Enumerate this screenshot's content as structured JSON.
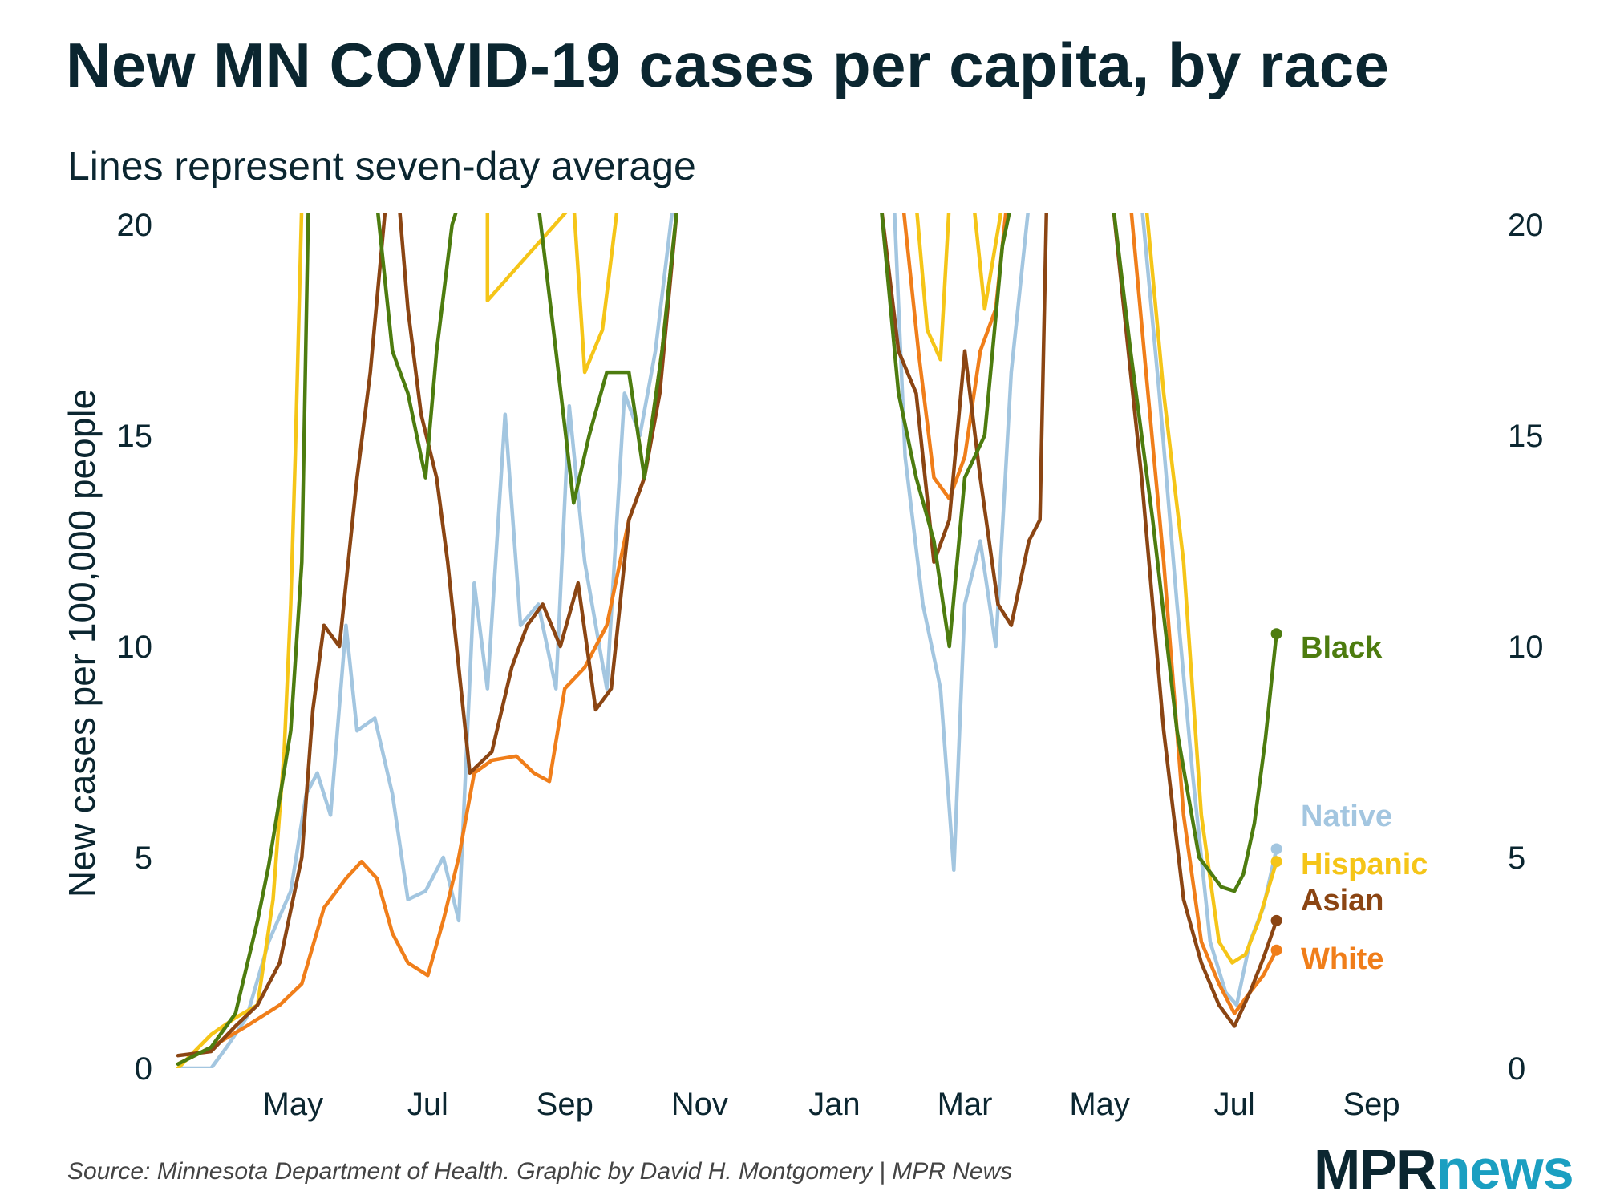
{
  "title": "New MN COVID-19 cases per capita, by race",
  "subtitle": "Lines represent seven-day average",
  "source": "Source: Minnesota Department of Health. Graphic by David H. Montgomery | MPR News",
  "logo": {
    "mpr": "MPR",
    "news": "news"
  },
  "colors": {
    "Black": "#4d7c0f",
    "Native": "#a3c6e0",
    "Hispanic": "#f5c518",
    "Asian": "#8b4513",
    "White": "#f07e1a"
  },
  "chart_data": {
    "type": "line",
    "ylabel": "New cases per 100,000 people",
    "ylim": [
      0,
      20
    ],
    "yticks": [
      0,
      5,
      10,
      15,
      20
    ],
    "xlim": [
      "2020-03-10",
      "2021-09-30"
    ],
    "xticks": [
      {
        "date": "2020-05-01",
        "label": "May"
      },
      {
        "date": "2020-07-01",
        "label": "Jul"
      },
      {
        "date": "2020-09-01",
        "label": "Sep"
      },
      {
        "date": "2020-11-01",
        "label": "Nov"
      },
      {
        "date": "2021-01-01",
        "label": "Jan"
      },
      {
        "date": "2021-03-01",
        "label": "Mar"
      },
      {
        "date": "2021-05-01",
        "label": "May"
      },
      {
        "date": "2021-07-01",
        "label": "Jul"
      },
      {
        "date": "2021-09-01",
        "label": "Sep"
      }
    ],
    "series": [
      {
        "name": "Black",
        "end_value": 10.3,
        "points": [
          [
            "2020-03-10",
            0.1
          ],
          [
            "2020-03-25",
            0.5
          ],
          [
            "2020-04-05",
            1.3
          ],
          [
            "2020-04-15",
            3.5
          ],
          [
            "2020-04-20",
            4.8
          ],
          [
            "2020-04-25",
            6.4
          ],
          [
            "2020-04-30",
            8.0
          ],
          [
            "2020-05-05",
            12.0
          ],
          [
            "2020-05-08",
            20.5
          ],
          [
            "2020-06-08",
            20.5
          ],
          [
            "2020-06-15",
            17.0
          ],
          [
            "2020-06-22",
            16.0
          ],
          [
            "2020-06-30",
            14.0
          ],
          [
            "2020-07-05",
            17.0
          ],
          [
            "2020-07-12",
            20.0
          ],
          [
            "2020-07-15",
            20.5
          ],
          [
            "2020-08-20",
            20.5
          ],
          [
            "2020-08-28",
            17.0
          ],
          [
            "2020-09-05",
            13.4
          ],
          [
            "2020-09-12",
            15.0
          ],
          [
            "2020-09-20",
            16.5
          ],
          [
            "2020-09-30",
            16.5
          ],
          [
            "2020-10-07",
            14.0
          ],
          [
            "2020-10-15",
            17.0
          ],
          [
            "2020-10-22",
            20.5
          ],
          [
            "2021-01-22",
            20.5
          ],
          [
            "2021-01-30",
            16.0
          ],
          [
            "2021-02-07",
            14.0
          ],
          [
            "2021-02-15",
            12.5
          ],
          [
            "2021-02-22",
            10.0
          ],
          [
            "2021-03-01",
            14.0
          ],
          [
            "2021-03-10",
            15.0
          ],
          [
            "2021-03-18",
            19.5
          ],
          [
            "2021-03-22",
            20.5
          ],
          [
            "2021-05-07",
            20.5
          ],
          [
            "2021-05-15",
            17.0
          ],
          [
            "2021-05-25",
            13.0
          ],
          [
            "2021-06-05",
            8.0
          ],
          [
            "2021-06-15",
            5.0
          ],
          [
            "2021-06-25",
            4.3
          ],
          [
            "2021-07-01",
            4.2
          ],
          [
            "2021-07-05",
            4.6
          ],
          [
            "2021-07-10",
            5.8
          ],
          [
            "2021-07-15",
            7.8
          ],
          [
            "2021-07-20",
            10.3
          ]
        ]
      },
      {
        "name": "Native",
        "end_value": 5.2,
        "points": [
          [
            "2020-03-10",
            0.0
          ],
          [
            "2020-03-25",
            0.0
          ],
          [
            "2020-04-01",
            0.5
          ],
          [
            "2020-04-10",
            1.2
          ],
          [
            "2020-04-20",
            3.0
          ],
          [
            "2020-04-30",
            4.2
          ],
          [
            "2020-05-07",
            6.5
          ],
          [
            "2020-05-12",
            7.0
          ],
          [
            "2020-05-18",
            6.0
          ],
          [
            "2020-05-25",
            10.5
          ],
          [
            "2020-05-30",
            8.0
          ],
          [
            "2020-06-07",
            8.3
          ],
          [
            "2020-06-15",
            6.5
          ],
          [
            "2020-06-22",
            4.0
          ],
          [
            "2020-06-30",
            4.2
          ],
          [
            "2020-07-08",
            5.0
          ],
          [
            "2020-07-15",
            3.5
          ],
          [
            "2020-07-22",
            11.5
          ],
          [
            "2020-07-28",
            9.0
          ],
          [
            "2020-08-05",
            15.5
          ],
          [
            "2020-08-12",
            10.5
          ],
          [
            "2020-08-20",
            11.0
          ],
          [
            "2020-08-28",
            9.0
          ],
          [
            "2020-09-03",
            15.7
          ],
          [
            "2020-09-10",
            12.0
          ],
          [
            "2020-09-20",
            9.0
          ],
          [
            "2020-09-28",
            16.0
          ],
          [
            "2020-10-05",
            15.0
          ],
          [
            "2020-10-12",
            17.0
          ],
          [
            "2020-10-20",
            20.5
          ],
          [
            "2021-01-28",
            20.5
          ],
          [
            "2021-02-02",
            14.5
          ],
          [
            "2021-02-10",
            11.0
          ],
          [
            "2021-02-18",
            9.0
          ],
          [
            "2021-02-24",
            4.7
          ],
          [
            "2021-03-01",
            11.0
          ],
          [
            "2021-03-08",
            12.5
          ],
          [
            "2021-03-15",
            10.0
          ],
          [
            "2021-03-22",
            16.5
          ],
          [
            "2021-03-30",
            20.5
          ],
          [
            "2021-05-20",
            20.5
          ],
          [
            "2021-05-28",
            16.0
          ],
          [
            "2021-06-05",
            11.0
          ],
          [
            "2021-06-12",
            7.0
          ],
          [
            "2021-06-20",
            3.0
          ],
          [
            "2021-06-27",
            1.8
          ],
          [
            "2021-07-02",
            1.5
          ],
          [
            "2021-07-08",
            3.0
          ],
          [
            "2021-07-14",
            3.8
          ],
          [
            "2021-07-20",
            5.2
          ]
        ]
      },
      {
        "name": "Hispanic",
        "end_value": 4.9,
        "points": [
          [
            "2020-03-10",
            0.0
          ],
          [
            "2020-03-25",
            0.8
          ],
          [
            "2020-04-05",
            1.2
          ],
          [
            "2020-04-15",
            1.5
          ],
          [
            "2020-04-22",
            4.0
          ],
          [
            "2020-04-27",
            7.5
          ],
          [
            "2020-04-30",
            11.0
          ],
          [
            "2020-05-02",
            14.5
          ],
          [
            "2020-05-05",
            20.5
          ],
          [
            "2020-07-28",
            20.5
          ],
          [
            "2020-07-28",
            18.2
          ],
          [
            "2020-09-05",
            20.5
          ],
          [
            "2020-09-10",
            16.5
          ],
          [
            "2020-09-18",
            17.5
          ],
          [
            "2020-09-25",
            20.5
          ],
          [
            "2021-02-07",
            20.5
          ],
          [
            "2021-02-12",
            17.5
          ],
          [
            "2021-02-18",
            16.8
          ],
          [
            "2021-02-22",
            20.5
          ],
          [
            "2021-03-05",
            20.5
          ],
          [
            "2021-03-10",
            18.0
          ],
          [
            "2021-03-18",
            20.5
          ],
          [
            "2021-05-22",
            20.5
          ],
          [
            "2021-05-30",
            16.0
          ],
          [
            "2021-06-08",
            12.0
          ],
          [
            "2021-06-16",
            6.0
          ],
          [
            "2021-06-24",
            3.0
          ],
          [
            "2021-06-30",
            2.5
          ],
          [
            "2021-07-06",
            2.7
          ],
          [
            "2021-07-12",
            3.5
          ],
          [
            "2021-07-20",
            4.9
          ]
        ]
      },
      {
        "name": "Asian",
        "end_value": 3.5,
        "points": [
          [
            "2020-03-10",
            0.3
          ],
          [
            "2020-03-25",
            0.4
          ],
          [
            "2020-04-05",
            1.0
          ],
          [
            "2020-04-15",
            1.5
          ],
          [
            "2020-04-25",
            2.5
          ],
          [
            "2020-05-05",
            5.0
          ],
          [
            "2020-05-10",
            8.5
          ],
          [
            "2020-05-15",
            10.5
          ],
          [
            "2020-05-22",
            10.0
          ],
          [
            "2020-05-30",
            14.0
          ],
          [
            "2020-06-05",
            16.5
          ],
          [
            "2020-06-12",
            20.5
          ],
          [
            "2020-06-18",
            20.5
          ],
          [
            "2020-06-22",
            18.0
          ],
          [
            "2020-06-28",
            15.5
          ],
          [
            "2020-07-05",
            14.0
          ],
          [
            "2020-07-10",
            12.0
          ],
          [
            "2020-07-20",
            7.0
          ],
          [
            "2020-07-30",
            7.5
          ],
          [
            "2020-08-08",
            9.5
          ],
          [
            "2020-08-15",
            10.5
          ],
          [
            "2020-08-22",
            11.0
          ],
          [
            "2020-08-30",
            10.0
          ],
          [
            "2020-09-07",
            11.5
          ],
          [
            "2020-09-15",
            8.5
          ],
          [
            "2020-09-22",
            9.0
          ],
          [
            "2020-09-30",
            13.0
          ],
          [
            "2020-10-07",
            14.0
          ],
          [
            "2020-10-14",
            16.0
          ],
          [
            "2020-10-22",
            20.5
          ],
          [
            "2021-01-22",
            20.5
          ],
          [
            "2021-01-30",
            17.0
          ],
          [
            "2021-02-07",
            16.0
          ],
          [
            "2021-02-15",
            12.0
          ],
          [
            "2021-02-22",
            13.0
          ],
          [
            "2021-03-01",
            17.0
          ],
          [
            "2021-03-08",
            14.0
          ],
          [
            "2021-03-16",
            11.0
          ],
          [
            "2021-03-22",
            10.5
          ],
          [
            "2021-03-30",
            12.5
          ],
          [
            "2021-04-04",
            13.0
          ],
          [
            "2021-04-07",
            20.5
          ],
          [
            "2021-05-07",
            20.5
          ],
          [
            "2021-05-12",
            18.0
          ],
          [
            "2021-05-20",
            14.0
          ],
          [
            "2021-05-30",
            8.0
          ],
          [
            "2021-06-08",
            4.0
          ],
          [
            "2021-06-16",
            2.5
          ],
          [
            "2021-06-24",
            1.5
          ],
          [
            "2021-07-01",
            1.0
          ],
          [
            "2021-07-08",
            1.8
          ],
          [
            "2021-07-14",
            2.6
          ],
          [
            "2021-07-20",
            3.5
          ]
        ]
      },
      {
        "name": "White",
        "end_value": 2.8,
        "points": [
          [
            "2020-03-10",
            0.1
          ],
          [
            "2020-03-25",
            0.5
          ],
          [
            "2020-04-10",
            1.0
          ],
          [
            "2020-04-25",
            1.5
          ],
          [
            "2020-05-05",
            2.0
          ],
          [
            "2020-05-15",
            3.8
          ],
          [
            "2020-05-25",
            4.5
          ],
          [
            "2020-06-01",
            4.9
          ],
          [
            "2020-06-08",
            4.5
          ],
          [
            "2020-06-15",
            3.2
          ],
          [
            "2020-06-22",
            2.5
          ],
          [
            "2020-07-01",
            2.2
          ],
          [
            "2020-07-08",
            3.5
          ],
          [
            "2020-07-15",
            5.0
          ],
          [
            "2020-07-22",
            7.0
          ],
          [
            "2020-07-30",
            7.3
          ],
          [
            "2020-08-10",
            7.4
          ],
          [
            "2020-08-18",
            7.0
          ],
          [
            "2020-08-25",
            6.8
          ],
          [
            "2020-09-01",
            9.0
          ],
          [
            "2020-09-10",
            9.5
          ],
          [
            "2020-09-20",
            10.5
          ],
          [
            "2020-09-30",
            13.0
          ],
          [
            "2020-10-07",
            14.0
          ],
          [
            "2020-10-15",
            17.0
          ],
          [
            "2020-10-22",
            20.5
          ],
          [
            "2021-02-01",
            20.5
          ],
          [
            "2021-02-08",
            17.0
          ],
          [
            "2021-02-15",
            14.0
          ],
          [
            "2021-02-22",
            13.5
          ],
          [
            "2021-03-01",
            14.5
          ],
          [
            "2021-03-08",
            17.0
          ],
          [
            "2021-03-15",
            18.0
          ],
          [
            "2021-03-20",
            20.5
          ],
          [
            "2021-05-15",
            20.5
          ],
          [
            "2021-05-22",
            16.5
          ],
          [
            "2021-05-30",
            12.0
          ],
          [
            "2021-06-08",
            6.0
          ],
          [
            "2021-06-16",
            3.0
          ],
          [
            "2021-06-24",
            2.0
          ],
          [
            "2021-07-01",
            1.3
          ],
          [
            "2021-07-08",
            1.8
          ],
          [
            "2021-07-14",
            2.2
          ],
          [
            "2021-07-20",
            2.8
          ]
        ]
      }
    ]
  }
}
